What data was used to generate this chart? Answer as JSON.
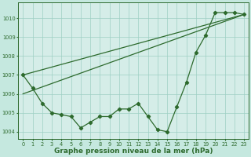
{
  "line1": {
    "x": [
      0,
      1,
      2,
      3,
      4,
      5,
      6,
      7,
      8,
      9,
      10,
      11,
      12,
      13,
      14,
      15,
      16,
      17,
      18,
      19,
      20,
      21,
      22,
      23
    ],
    "y": [
      1007.0,
      1006.3,
      1005.5,
      1005.0,
      1004.9,
      1004.8,
      1004.2,
      1004.5,
      1004.8,
      1004.8,
      1005.2,
      1005.2,
      1005.5,
      1004.8,
      1004.1,
      1004.0,
      1005.3,
      1006.6,
      1008.2,
      1009.1,
      1010.3,
      1010.3,
      1010.3,
      1010.2
    ],
    "color": "#2d6a2d",
    "marker": "D",
    "markersize": 2.2,
    "linewidth": 0.9
  },
  "line2": {
    "x": [
      0,
      23
    ],
    "y": [
      1007.0,
      1010.2
    ],
    "color": "#2d6a2d",
    "linewidth": 0.9
  },
  "line3": {
    "x": [
      0,
      23
    ],
    "y": [
      1006.0,
      1010.2
    ],
    "color": "#2d6a2d",
    "linewidth": 0.9
  },
  "background_color": "#c5e8df",
  "grid_color": "#9ecfc4",
  "plot_bg": "#d5ede8",
  "xlabel": "Graphe pression niveau de la mer (hPa)",
  "xlabel_fontsize": 6.5,
  "ylabel_ticks": [
    1004,
    1005,
    1006,
    1007,
    1008,
    1009,
    1010
  ],
  "xlim": [
    -0.5,
    23.5
  ],
  "ylim": [
    1003.6,
    1010.85
  ],
  "xticks": [
    0,
    1,
    2,
    3,
    4,
    5,
    6,
    7,
    8,
    9,
    10,
    11,
    12,
    13,
    14,
    15,
    16,
    17,
    18,
    19,
    20,
    21,
    22,
    23
  ],
  "tick_fontsize": 4.8,
  "line_color": "#2d6a2d"
}
